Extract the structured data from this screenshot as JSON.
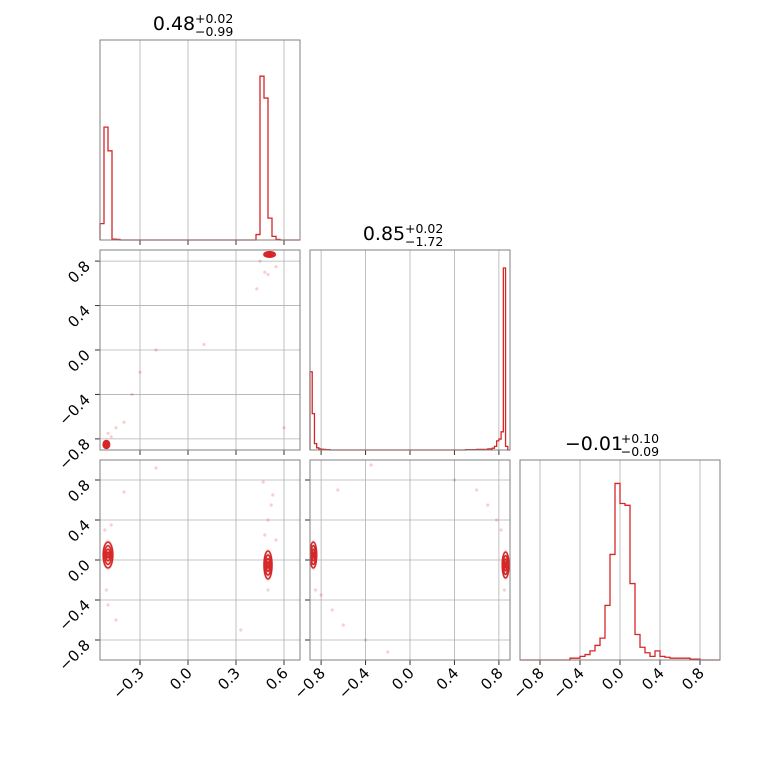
{
  "chart_data": {
    "type": "corner",
    "colors": {
      "series": "#d62728",
      "grid": "#b0b0b0",
      "frame": "#808080"
    },
    "grid": true,
    "parameters": [
      {
        "title_value": "0.48",
        "title_plus": "+0.02",
        "title_minus": "−0.99",
        "range": [
          -0.55,
          0.7
        ],
        "ticks": [
          {
            "value": -0.3,
            "label": "−0.3"
          },
          {
            "value": 0.0,
            "label": "0.0"
          },
          {
            "value": 0.3,
            "label": "0.3"
          },
          {
            "value": 0.6,
            "label": "0.6"
          }
        ]
      },
      {
        "title_value": "0.85",
        "title_plus": "+0.02",
        "title_minus": "−1.72",
        "range": [
          -0.9,
          0.9
        ],
        "ticks": [
          {
            "value": -0.8,
            "label": "−0.8"
          },
          {
            "value": -0.4,
            "label": "−0.4"
          },
          {
            "value": 0.0,
            "label": "0.0"
          },
          {
            "value": 0.4,
            "label": "0.4"
          },
          {
            "value": 0.8,
            "label": "0.8"
          }
        ]
      },
      {
        "title_value": "−0.01",
        "title_plus": "+0.10",
        "title_minus": "−0.09",
        "range": [
          -1.0,
          1.0
        ],
        "ticks": [
          {
            "value": -0.8,
            "label": "−0.8"
          },
          {
            "value": -0.4,
            "label": "−0.4"
          },
          {
            "value": 0.0,
            "label": "0.0"
          },
          {
            "value": 0.4,
            "label": "0.4"
          },
          {
            "value": 0.8,
            "label": "0.8"
          }
        ]
      }
    ],
    "histograms": [
      {
        "param": 0,
        "edges": [
          -0.55,
          -0.525,
          -0.5,
          -0.475,
          -0.45,
          -0.425,
          -0.4,
          0.4,
          0.425,
          0.45,
          0.475,
          0.5,
          0.525,
          0.55,
          0.575,
          0.6,
          0.7
        ],
        "counts": [
          0.09,
          0.62,
          0.49,
          0.005,
          0.003,
          0.0,
          0.0,
          0.0,
          0.03,
          0.9,
          0.78,
          0.12,
          0.02,
          0.003,
          0.0,
          0.0
        ]
      },
      {
        "param": 1,
        "edges": [
          -0.9,
          -0.88,
          -0.86,
          -0.84,
          -0.82,
          -0.8,
          -0.78,
          -0.76,
          -0.74,
          -0.72,
          0.3,
          0.4,
          0.5,
          0.6,
          0.7,
          0.74,
          0.76,
          0.78,
          0.8,
          0.82,
          0.84,
          0.86,
          0.88,
          0.9
        ],
        "counts": [
          0.43,
          0.2,
          0.035,
          0.012,
          0.006,
          0.004,
          0.003,
          0.002,
          0.002,
          0.0,
          0.0,
          0.0,
          0.002,
          0.003,
          0.006,
          0.01,
          0.02,
          0.05,
          0.06,
          0.1,
          1.0,
          0.02,
          0.0
        ]
      },
      {
        "param": 2,
        "edges": [
          -1.0,
          -0.5,
          -0.45,
          -0.4,
          -0.35,
          -0.3,
          -0.25,
          -0.2,
          -0.15,
          -0.1,
          -0.05,
          0.0,
          0.05,
          0.1,
          0.15,
          0.2,
          0.25,
          0.3,
          0.35,
          0.4,
          0.45,
          0.5,
          0.55,
          0.6,
          0.7,
          0.8,
          1.0
        ],
        "counts": [
          0.0,
          0.01,
          0.01,
          0.02,
          0.03,
          0.05,
          0.08,
          0.12,
          0.3,
          0.58,
          0.97,
          0.86,
          0.85,
          0.42,
          0.14,
          0.07,
          0.04,
          0.02,
          0.05,
          0.02,
          0.015,
          0.01,
          0.01,
          0.01,
          0.005,
          0.0
        ]
      }
    ],
    "contour_panels": [
      {
        "xparam": 0,
        "yparam": 1,
        "blobs": [
          {
            "cx": 0.51,
            "cy": 0.86,
            "rx": 0.035,
            "ry": 0.025
          },
          {
            "cx": -0.51,
            "cy": -0.85,
            "rx": 0.02,
            "ry": 0.035
          }
        ],
        "scatter": [
          {
            "x": -0.2,
            "y": 0.0
          },
          {
            "x": -0.3,
            "y": -0.2
          },
          {
            "x": -0.35,
            "y": -0.4
          },
          {
            "x": -0.4,
            "y": -0.65
          },
          {
            "x": 0.1,
            "y": 0.05
          },
          {
            "x": 0.45,
            "y": 0.8
          },
          {
            "x": 0.48,
            "y": 0.7
          },
          {
            "x": 0.55,
            "y": 0.75
          },
          {
            "x": 0.43,
            "y": 0.55
          },
          {
            "x": -0.45,
            "y": -0.7
          },
          {
            "x": -0.5,
            "y": -0.75
          },
          {
            "x": 0.6,
            "y": -0.7
          },
          {
            "x": -0.48,
            "y": -0.78
          },
          {
            "x": 0.5,
            "y": 0.68
          }
        ]
      },
      {
        "xparam": 0,
        "yparam": 2,
        "blobs": [
          {
            "cx": -0.5,
            "cy": 0.05,
            "rx": 0.03,
            "ry": 0.13
          },
          {
            "cx": 0.5,
            "cy": -0.05,
            "rx": 0.025,
            "ry": 0.14
          }
        ],
        "scatter": [
          {
            "x": -0.52,
            "y": 0.3
          },
          {
            "x": -0.51,
            "y": -0.3
          },
          {
            "x": -0.5,
            "y": -0.45
          },
          {
            "x": -0.48,
            "y": 0.35
          },
          {
            "x": 0.5,
            "y": 0.4
          },
          {
            "x": 0.52,
            "y": 0.55
          },
          {
            "x": 0.53,
            "y": 0.65
          },
          {
            "x": 0.48,
            "y": 0.25
          },
          {
            "x": 0.5,
            "y": -0.3
          },
          {
            "x": 0.47,
            "y": 0.78
          },
          {
            "x": -0.4,
            "y": 0.68
          },
          {
            "x": -0.45,
            "y": -0.6
          },
          {
            "x": 0.33,
            "y": -0.7
          },
          {
            "x": -0.2,
            "y": 0.92
          },
          {
            "x": 0.55,
            "y": 0.2
          }
        ]
      },
      {
        "xparam": 1,
        "yparam": 2,
        "blobs": [
          {
            "cx": -0.87,
            "cy": 0.05,
            "rx": 0.03,
            "ry": 0.13
          },
          {
            "cx": 0.86,
            "cy": -0.05,
            "rx": 0.03,
            "ry": 0.13
          }
        ],
        "scatter": [
          {
            "x": -0.85,
            "y": -0.3
          },
          {
            "x": -0.8,
            "y": -0.35
          },
          {
            "x": -0.7,
            "y": -0.5
          },
          {
            "x": -0.6,
            "y": -0.65
          },
          {
            "x": -0.4,
            "y": -0.8
          },
          {
            "x": -0.2,
            "y": -0.92
          },
          {
            "x": 0.6,
            "y": 0.7
          },
          {
            "x": 0.7,
            "y": 0.55
          },
          {
            "x": 0.78,
            "y": 0.4
          },
          {
            "x": 0.82,
            "y": 0.3
          },
          {
            "x": -0.35,
            "y": 0.95
          },
          {
            "x": -0.65,
            "y": 0.7
          },
          {
            "x": 0.4,
            "y": 0.8
          },
          {
            "x": 0.85,
            "y": -0.3
          }
        ]
      }
    ]
  }
}
